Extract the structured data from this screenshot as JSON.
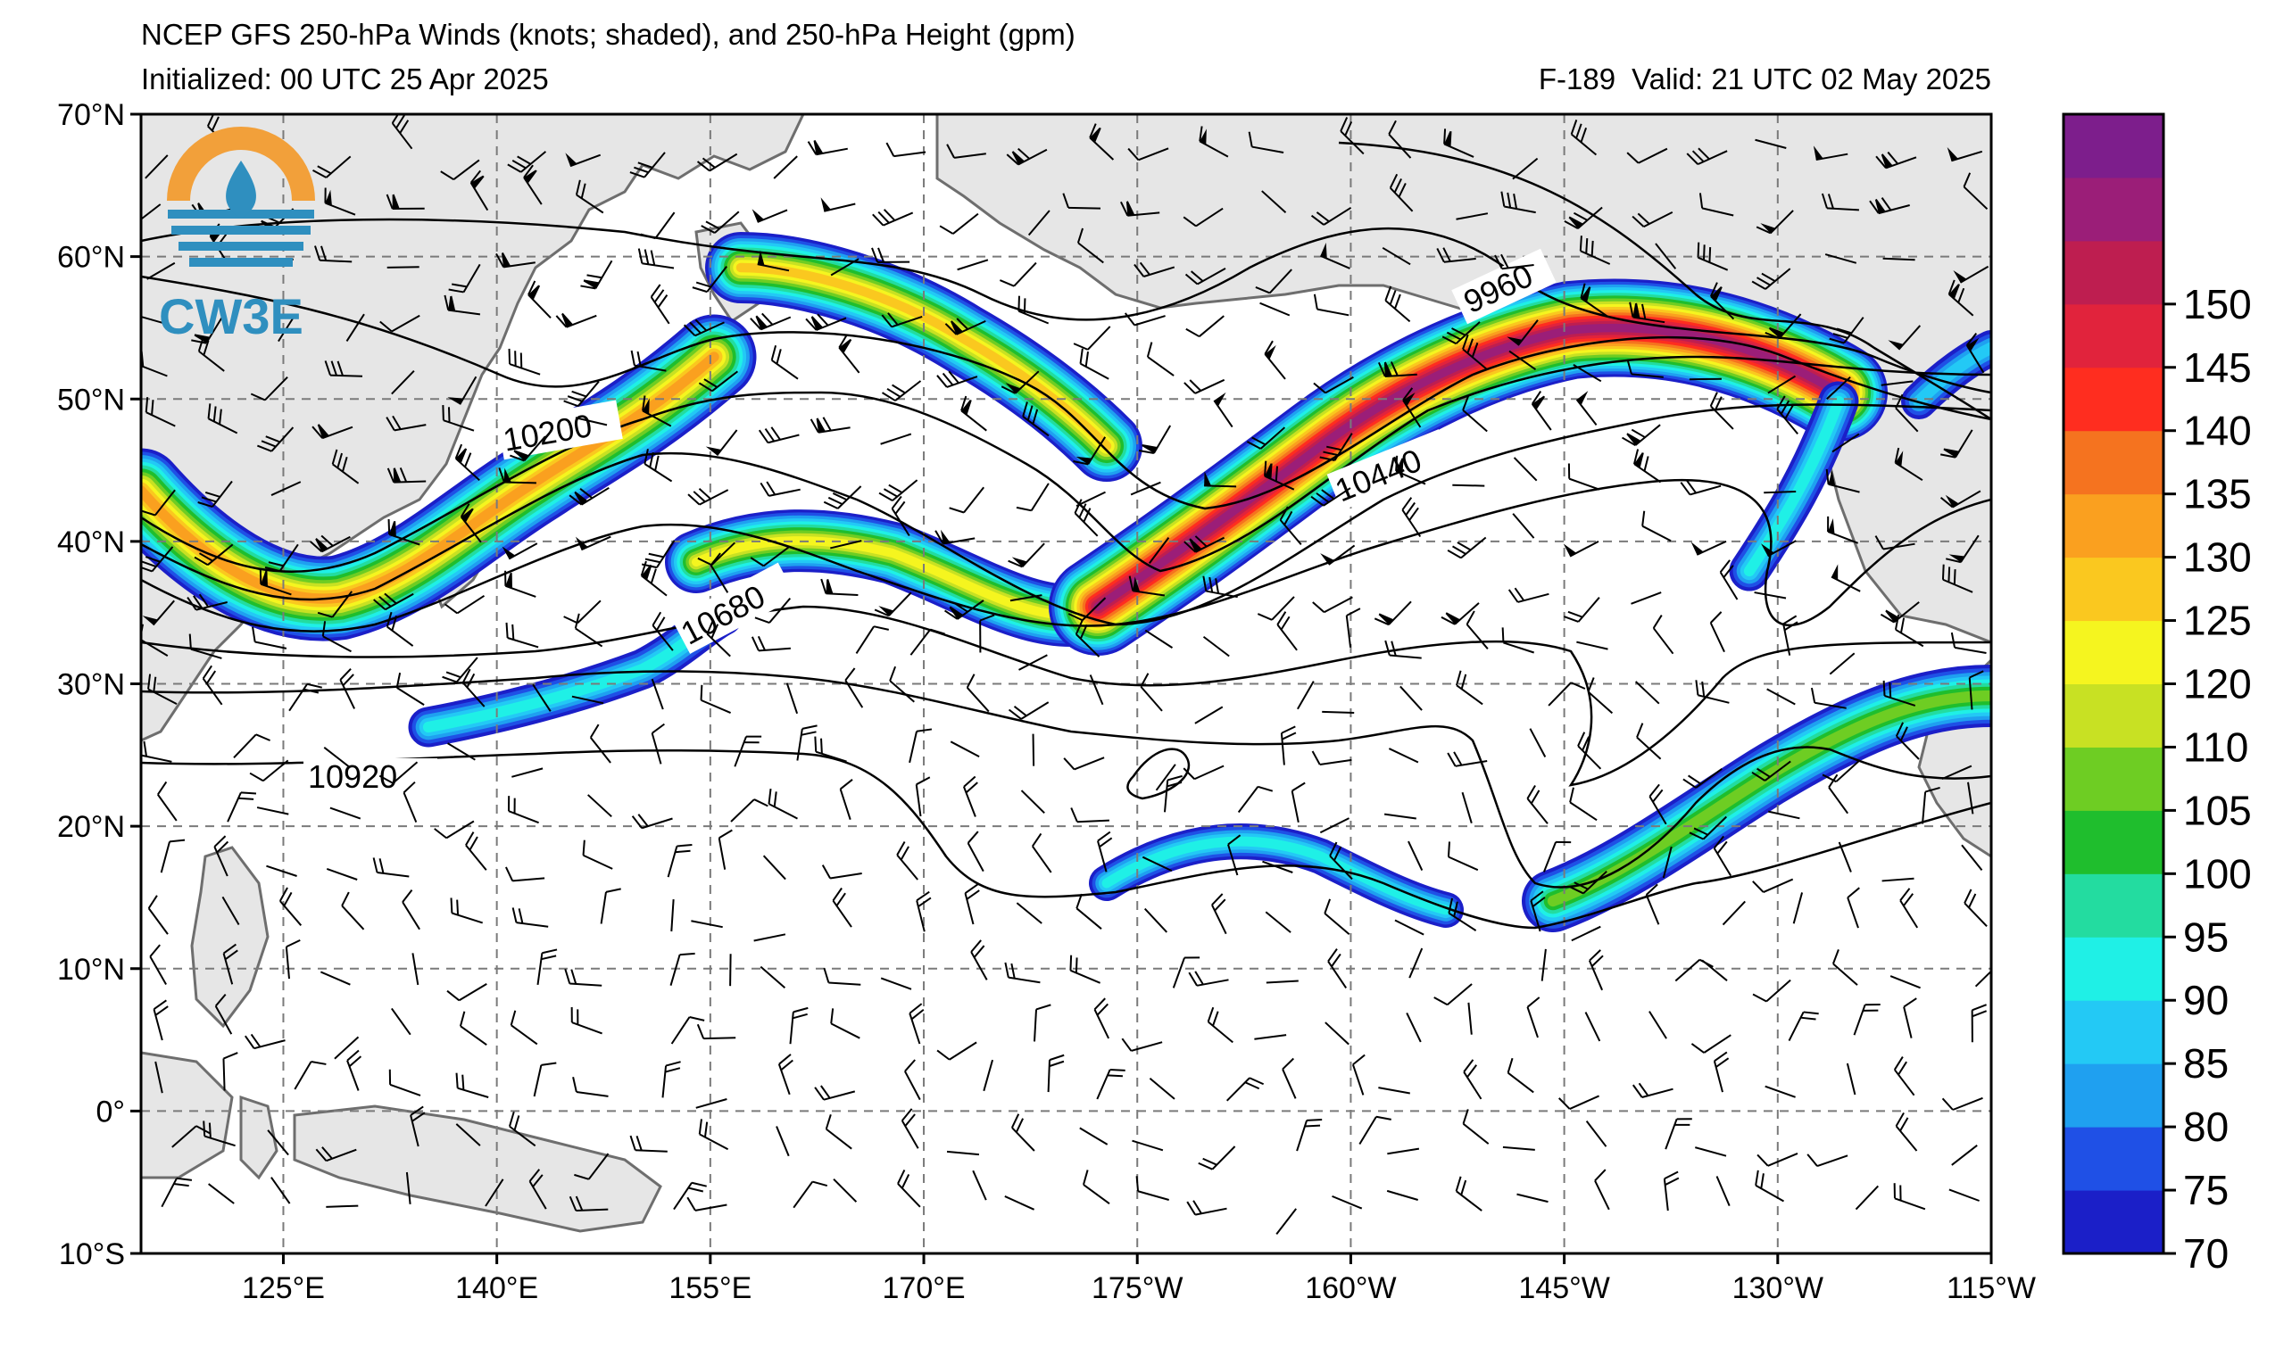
{
  "header": {
    "title": "NCEP GFS 250-hPa Winds (knots; shaded), and 250-hPa Height (gpm)",
    "initialized": "Initialized: 00 UTC 25 Apr 2025",
    "forecast_hour": "F-189",
    "valid": "Valid: 21 UTC 02 May 2025"
  },
  "logo": {
    "text": "CW3E",
    "ring_color": "#f2a03a",
    "wave_color": "#2f8fbf"
  },
  "map": {
    "background": "#ffffff",
    "land_color": "#e6e6e6",
    "coast_color": "#6e6e6e",
    "lat_labels": [
      "70°N",
      "60°N",
      "50°N",
      "40°N",
      "30°N",
      "20°N",
      "10°N",
      "0°",
      "10°S"
    ],
    "lon_labels": [
      "125°E",
      "140°E",
      "155°E",
      "170°E",
      "175°W",
      "160°W",
      "145°W",
      "130°W",
      "115°W"
    ],
    "contour_labels": [
      "9960",
      "10200",
      "10440",
      "10680",
      "10920"
    ]
  },
  "colorbar": {
    "levels": [
      "70",
      "75",
      "80",
      "85",
      "90",
      "95",
      "100",
      "105",
      "110",
      "120",
      "125",
      "130",
      "135",
      "140",
      "145",
      "150"
    ],
    "colors": [
      "#1b1fc8",
      "#1f50e6",
      "#1fa0f0",
      "#23c9f5",
      "#1ff0e6",
      "#23dca0",
      "#1fbe2d",
      "#6ecd23",
      "#c8e123",
      "#f5f51f",
      "#fac81f",
      "#faa01f",
      "#f5731f",
      "#ff2d1f",
      "#e1233c",
      "#be1e50",
      "#9b1e78",
      "#7d1e8c"
    ]
  }
}
